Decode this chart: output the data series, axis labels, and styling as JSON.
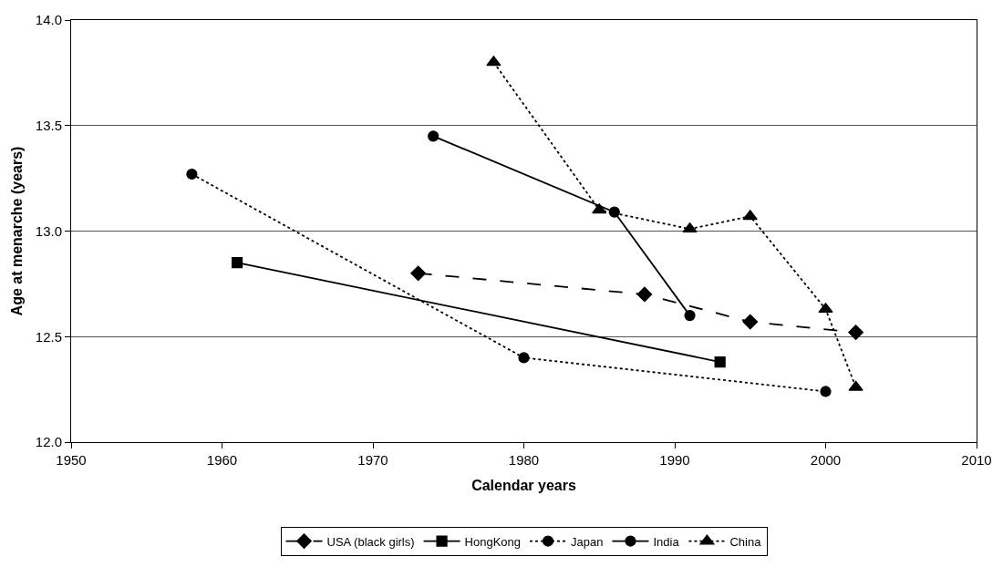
{
  "chart_data": {
    "type": "line",
    "xlabel": "Calendar years",
    "ylabel": "Age at menarche (years)",
    "xlim": [
      1950,
      2010
    ],
    "xticks": [
      1950,
      1960,
      1970,
      1980,
      1990,
      2000,
      2010
    ],
    "ylim": [
      12.0,
      14.0
    ],
    "yticks": [
      {
        "value": 12,
        "label": "12.0"
      },
      {
        "value": 12.5,
        "label": "12.5"
      },
      {
        "value": 13,
        "label": "13.0"
      },
      {
        "value": 13.5,
        "label": "13.5"
      },
      {
        "value": 14,
        "label": "14.0"
      }
    ],
    "grid": "y",
    "legend": "bottom",
    "series": [
      {
        "name": "USA (black girls)",
        "color": "#000000",
        "marker": "diamond",
        "line_style": "dashed",
        "x": [
          1973,
          1988,
          1995,
          2002
        ],
        "values": [
          12.8,
          12.7,
          12.57,
          12.52
        ]
      },
      {
        "name": "HongKong",
        "color": "#000000",
        "marker": "square",
        "line_style": "solid",
        "x": [
          1961,
          1993
        ],
        "values": [
          12.85,
          12.38
        ]
      },
      {
        "name": "Japan",
        "color": "#000000",
        "marker": "circle",
        "line_style": "dotted",
        "x": [
          1958,
          1980,
          2000
        ],
        "values": [
          13.27,
          12.4,
          12.24
        ]
      },
      {
        "name": "India",
        "color": "#000000",
        "marker": "circle",
        "line_style": "solid",
        "x": [
          1974,
          1986,
          1991
        ],
        "values": [
          13.45,
          13.09,
          12.6
        ]
      },
      {
        "name": "China",
        "color": "#000000",
        "marker": "triangle",
        "line_style": "dotted",
        "x": [
          1978,
          1985,
          1991,
          1995,
          2000,
          2002
        ],
        "values": [
          13.8,
          13.1,
          13.01,
          13.07,
          12.63,
          12.26
        ]
      }
    ]
  }
}
